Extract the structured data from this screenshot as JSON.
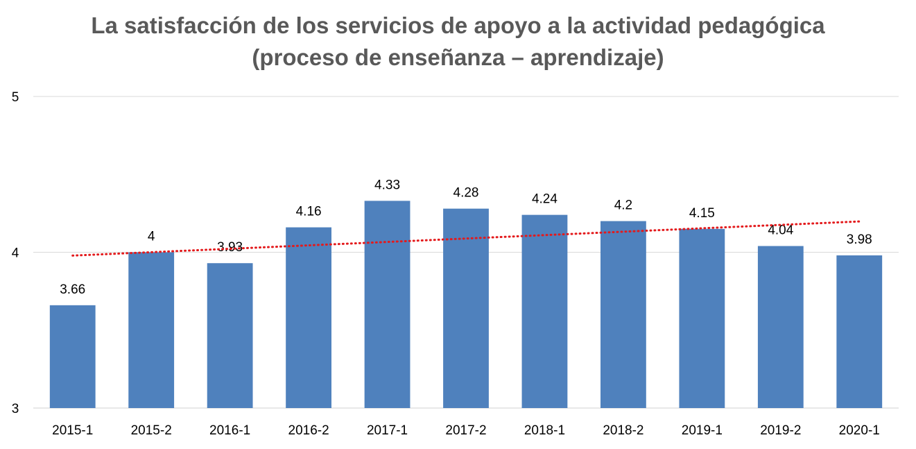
{
  "chart_data": {
    "type": "bar",
    "title": [
      "La satisfacción de los servicios de apoyo a la actividad pedagógica",
      "(proceso de enseñanza – aprendizaje)"
    ],
    "categories": [
      "2015-1",
      "2015-2",
      "2016-1",
      "2016-2",
      "2017-1",
      "2017-2",
      "2018-1",
      "2018-2",
      "2019-1",
      "2019-2",
      "2020-1"
    ],
    "values": [
      3.66,
      4,
      3.93,
      4.16,
      4.33,
      4.28,
      4.24,
      4.2,
      4.15,
      4.04,
      3.98
    ],
    "data_labels": [
      "3.66",
      "4",
      "3.93",
      "4.16",
      "4.33",
      "4.28",
      "4.24",
      "4.2",
      "4.15",
      "4.04",
      "3.98"
    ],
    "ylim": [
      3,
      5
    ],
    "yticks": [
      3,
      4,
      5
    ],
    "ytick_labels": [
      "3",
      "4",
      "5"
    ],
    "grid": true,
    "trendline": {
      "type": "linear",
      "style": "dotted",
      "color": "#e31a1c"
    },
    "bar_color": "#4f81bd",
    "legend": "none"
  }
}
